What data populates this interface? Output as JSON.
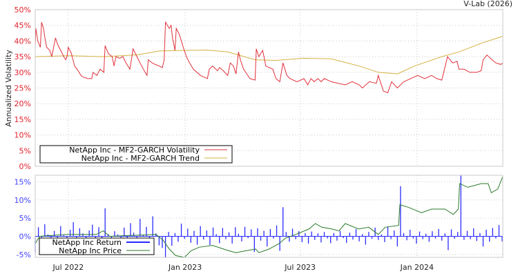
{
  "header": {
    "credit": "V-Lab (2026)"
  },
  "colors": {
    "volatility": "#e0303a",
    "trend": "#d4b040",
    "returns": "#2a2aff",
    "price": "#2a7a2a",
    "top_ticks": "#e0202a",
    "bottom_ticks": "#4040ff"
  },
  "chart_data": [
    {
      "type": "line",
      "title": "",
      "ylabel": "Annualized Volatility",
      "xlabel": "",
      "x_unit": "days since 2022-05-10",
      "xlim": [
        0,
        736
      ],
      "ylim": [
        0,
        50
      ],
      "yticks": [
        "0%",
        "5%",
        "10%",
        "15%",
        "20%",
        "25%",
        "30%",
        "35%",
        "40%",
        "45%",
        "50%"
      ],
      "ytick_values": [
        0,
        5,
        10,
        15,
        20,
        25,
        30,
        35,
        40,
        45,
        50
      ],
      "grid": true,
      "legend_position": "bottom-left",
      "series": [
        {
          "name": "NetApp Inc - MF2-GARCH Volatility",
          "x": [
            0,
            1,
            4,
            8,
            10,
            13,
            16,
            18,
            23,
            26,
            32,
            35,
            40,
            45,
            48,
            50,
            52,
            57,
            62,
            66,
            72,
            75,
            83,
            89,
            91,
            97,
            102,
            108,
            110,
            115,
            121,
            124,
            127,
            133,
            138,
            143,
            149,
            154,
            160,
            165,
            173,
            176,
            178,
            184,
            189,
            195,
            200,
            203,
            205,
            211,
            214,
            216,
            220,
            222,
            227,
            233,
            238,
            243,
            249,
            260,
            271,
            274,
            279,
            287,
            290,
            296,
            303,
            307,
            312,
            316,
            320,
            323,
            328,
            333,
            338,
            346,
            348,
            352,
            358,
            363,
            374,
            379,
            385,
            390,
            396,
            401,
            412,
            423,
            429,
            434,
            439,
            445,
            450,
            455,
            466,
            477,
            488,
            499,
            510,
            515,
            526,
            537,
            540,
            548,
            555,
            561,
            570,
            580,
            591,
            602,
            613,
            624,
            632,
            640,
            649,
            657,
            664,
            667,
            675,
            684,
            695,
            702,
            705,
            711,
            719,
            725,
            733,
            736
          ],
          "y": [
            38,
            44,
            40,
            38,
            46,
            44,
            40,
            38,
            37,
            35,
            41,
            39,
            37,
            35,
            34,
            35,
            38,
            36,
            32,
            31,
            29,
            28.5,
            28,
            28,
            30,
            29,
            31,
            30,
            38.5,
            36,
            35,
            32,
            35,
            34.5,
            35,
            33,
            31,
            37.5,
            35,
            33,
            30,
            29,
            34,
            33,
            32.5,
            32,
            31.5,
            34,
            46,
            44,
            45,
            41,
            37,
            44,
            42,
            38,
            35,
            33,
            31,
            29,
            28,
            31,
            32,
            30.5,
            31.5,
            30.5,
            29,
            33,
            32,
            29.5,
            36.5,
            34,
            31,
            29.5,
            28,
            27.5,
            37.5,
            35,
            37,
            32,
            31,
            28,
            27,
            33,
            29,
            28,
            27,
            28,
            26,
            28,
            27,
            28,
            27,
            28,
            27,
            26.5,
            26,
            27,
            26,
            25,
            27,
            26.5,
            29,
            24,
            23.5,
            27,
            25,
            27,
            28,
            29,
            28,
            29,
            28,
            27.5,
            35,
            33,
            33.5,
            31,
            31,
            30,
            30,
            30.5,
            34,
            35.5,
            34,
            33,
            32.5,
            33
          ]
        },
        {
          "name": "NetApp Inc - MF2-GARCH Trend",
          "x": [
            0,
            53,
            108,
            162,
            195,
            238,
            271,
            303,
            346,
            379,
            423,
            466,
            510,
            540,
            570,
            597,
            640,
            667,
            705,
            736
          ],
          "y": [
            35,
            35.3,
            35,
            35.6,
            36.8,
            37,
            37.1,
            36.5,
            34,
            33.8,
            34.5,
            34.3,
            32,
            30,
            29.5,
            32,
            35,
            36.5,
            39.5,
            41.5
          ]
        }
      ]
    },
    {
      "type": "line",
      "title": "",
      "xlabel": "",
      "x_unit": "days since 2022-05-10",
      "xlim": [
        0,
        736
      ],
      "ylim": [
        -5.8,
        16.8
      ],
      "yticks": [
        "-5%",
        "0%",
        "5%",
        "10%",
        "15%"
      ],
      "ytick_values": [
        -5,
        0,
        5,
        10,
        15
      ],
      "xticks": [
        "Jul 2022",
        "Jan 2023",
        "Jul 2023",
        "Jan 2024"
      ],
      "xtick_values": [
        52,
        236,
        417,
        601
      ],
      "grid": true,
      "legend_position": "bottom-left",
      "series": [
        {
          "name": "NetApp Inc Return",
          "start_day": 0,
          "step_days": 5,
          "y": [
            -4.5,
            2.5,
            -1,
            3.3,
            0.5,
            -0.8,
            1.5,
            -0.5,
            2.8,
            0.3,
            -1.2,
            1.8,
            3.9,
            -0.6,
            2.2,
            0.8,
            -0.9,
            1.6,
            3.2,
            -0.4,
            2.5,
            -1.1,
            7.7,
            0.6,
            -0.7,
            1.4,
            0.5,
            -0.6,
            2.4,
            -0.8,
            3.6,
            1.0,
            -1.3,
            4.8,
            0.4,
            2.6,
            -0.9,
            5.5,
            0.8,
            -2.5,
            -3.2,
            -5.8,
            1.2,
            -2.6,
            0.9,
            -1.5,
            3.5,
            -0.7,
            2.1,
            -1.8,
            1.5,
            -2.3,
            2.8,
            -0.9,
            1.6,
            -2.4,
            2.4,
            0.6,
            -1.9,
            2.3,
            -0.8,
            1.1,
            -2.0,
            2.5,
            0.7,
            -1.4,
            2.6,
            -0.5,
            1.9,
            -4.3,
            2.2,
            -1.2,
            1.5,
            -2.8,
            2.0,
            -0.6,
            3.0,
            -4.0,
            8.0,
            1.2,
            -1.5,
            2.1,
            -0.8,
            1.4,
            -1.6,
            0.9,
            -2.0,
            1.3,
            -1.0,
            0.8,
            -1.7,
            1.2,
            -0.6,
            -1.9,
            0.9,
            -1.2,
            1.5,
            -0.5,
            -1.8,
            1.0,
            -0.9,
            2.0,
            -1.4,
            0.6,
            -2.3,
            1.2,
            -0.7,
            2.4,
            -1.0,
            0.5,
            -1.6,
            2.7,
            -0.8,
            1.6,
            -2.8,
            13.8,
            0.9,
            -1.1,
            1.8,
            -0.6,
            -2.0,
            1.3,
            -0.8,
            0.7,
            -1.5,
            1.4,
            -0.6,
            2.0,
            -1.2,
            0.8,
            -3.8,
            1.9,
            -0.7,
            1.2,
            16.8,
            -1.0,
            1.5,
            -0.8,
            2.2,
            -1.3,
            0.9,
            -2.8,
            1.8,
            -1.5,
            2.3,
            -0.6,
            3.1,
            -1.4
          ]
        },
        {
          "name": "NetApp Inc Price",
          "x": [
            0,
            7,
            49,
            96,
            107,
            117,
            190,
            201,
            211,
            221,
            235,
            245,
            258,
            279,
            305,
            316,
            331,
            347,
            352,
            368,
            384,
            394,
            410,
            431,
            441,
            451,
            467,
            478,
            488,
            509,
            525,
            540,
            551,
            572,
            574,
            587,
            608,
            624,
            645,
            658,
            666,
            668,
            681,
            702,
            713,
            718,
            728,
            736
          ],
          "y": [
            -2,
            0,
            0.5,
            0.5,
            1.5,
            0,
            0.5,
            -1,
            -3.5,
            -5.3,
            -5.8,
            -4,
            -3,
            -2.5,
            -4,
            -4.5,
            -4,
            -3.5,
            -4.5,
            -3.5,
            -2,
            -0.5,
            0.5,
            2,
            3.5,
            2.5,
            2,
            1.5,
            3.5,
            2,
            2.5,
            0.5,
            2.5,
            3,
            8.7,
            8,
            6.5,
            7.5,
            7.5,
            6,
            7.5,
            14.5,
            13.5,
            14.5,
            14.5,
            12,
            13,
            16.5
          ]
        }
      ]
    }
  ]
}
